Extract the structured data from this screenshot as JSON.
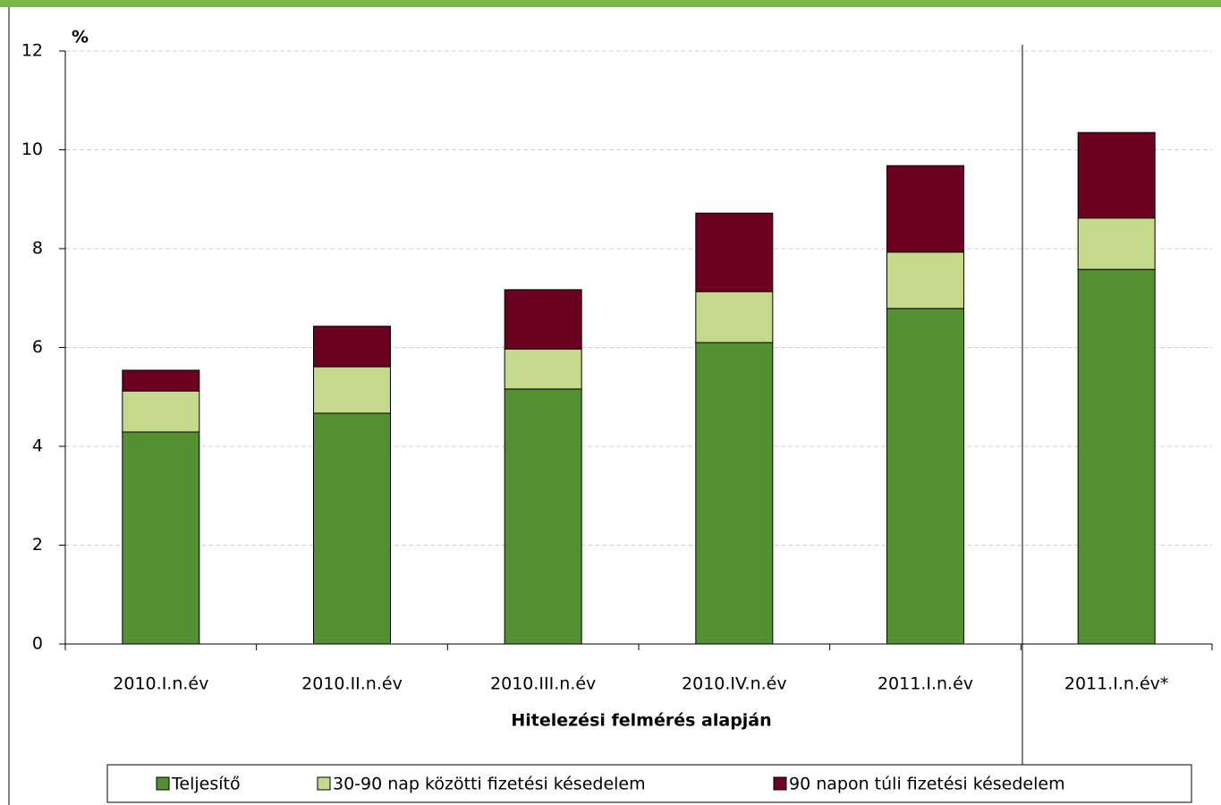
{
  "chart_data": {
    "type": "stacked-bar",
    "y_unit_label": "%",
    "xlabel": "Hitelezési felmérés alapján",
    "categories": [
      "2010.I.n.év",
      "2010.II.n.év",
      "2010.III.n.év",
      "2010.IV.n.év",
      "2011.I.n.év",
      "2011.I.n.év*"
    ],
    "series": [
      {
        "name": "Teljesítő",
        "color": "#558f33",
        "values": [
          4.29,
          4.67,
          5.16,
          6.1,
          6.79,
          7.58
        ]
      },
      {
        "name": "30-90 nap közötti fizetési késedelem",
        "color": "#c4d98c",
        "values": [
          0.83,
          0.94,
          0.81,
          1.03,
          1.14,
          1.04
        ]
      },
      {
        "name": "90 napon túli fizetési késedelem",
        "color": "#6b0021",
        "values": [
          0.42,
          0.82,
          1.2,
          1.59,
          1.75,
          1.73
        ]
      }
    ],
    "ylim": [
      0,
      12
    ],
    "yticks": [
      0,
      2,
      4,
      6,
      8,
      10,
      12
    ],
    "grid": true
  }
}
